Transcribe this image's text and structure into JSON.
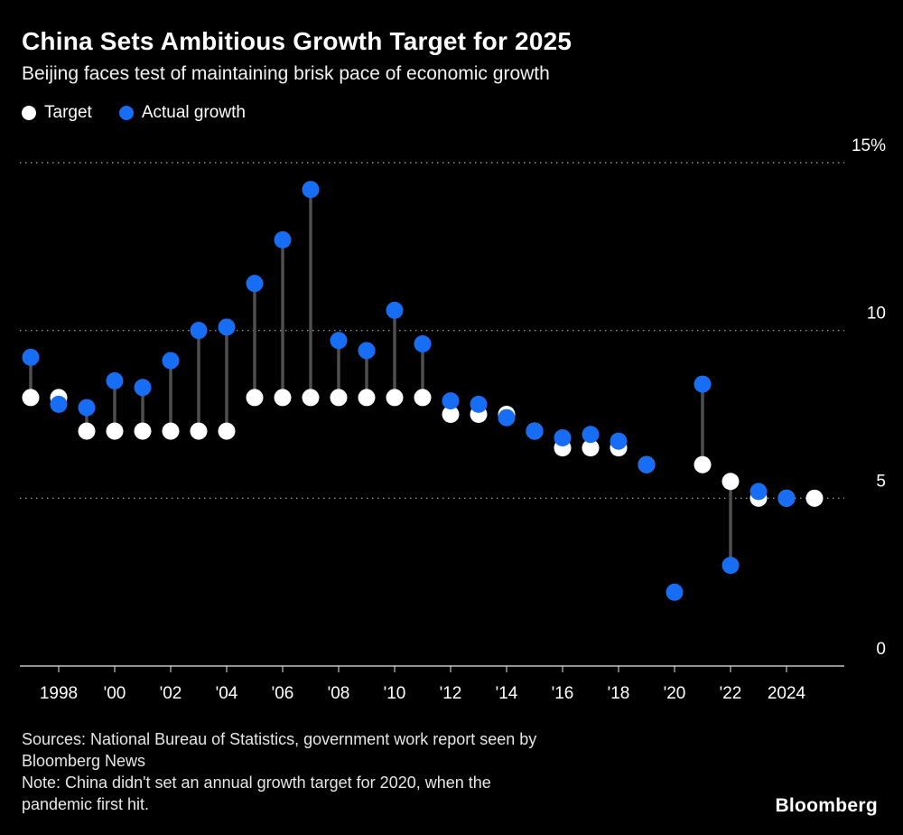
{
  "footer": {
    "source_lines": [
      "Sources: National Bureau of Statistics, government work report seen by",
      "Bloomberg News",
      "Note: China didn't set an annual growth target for 2020, when the",
      "pandemic first hit."
    ],
    "logo": "Bloomberg"
  },
  "colors": {
    "background": "#000000",
    "target": "#ffffff",
    "actual": "#186df5",
    "connector": "#4f4f4f",
    "gridline": "#8f8f8f",
    "axis": "#e8e8e8"
  },
  "chart_data": {
    "type": "scatter",
    "title": "China Sets Ambitious Growth Target for 2025",
    "subtitle": "Beijing faces test of maintaining brisk pace of economic growth",
    "xlabel": "",
    "ylabel": "",
    "ylim": [
      0,
      15
    ],
    "grid": true,
    "legend_position": "top-left",
    "yticks": [
      {
        "value": 0,
        "label": "0"
      },
      {
        "value": 5,
        "label": "5"
      },
      {
        "value": 10,
        "label": "10"
      },
      {
        "value": 15,
        "label": "15%"
      }
    ],
    "xticks": [
      {
        "value": 1998,
        "label": "1998"
      },
      {
        "value": 2000,
        "label": "'00"
      },
      {
        "value": 2002,
        "label": "'02"
      },
      {
        "value": 2004,
        "label": "'04"
      },
      {
        "value": 2006,
        "label": "'06"
      },
      {
        "value": 2008,
        "label": "'08"
      },
      {
        "value": 2010,
        "label": "'10"
      },
      {
        "value": 2012,
        "label": "'12"
      },
      {
        "value": 2014,
        "label": "'14"
      },
      {
        "value": 2016,
        "label": "'16"
      },
      {
        "value": 2018,
        "label": "'18"
      },
      {
        "value": 2020,
        "label": "'20"
      },
      {
        "value": 2022,
        "label": "'22"
      },
      {
        "value": 2024,
        "label": "2024"
      }
    ],
    "years": [
      1997,
      1998,
      1999,
      2000,
      2001,
      2002,
      2003,
      2004,
      2005,
      2006,
      2007,
      2008,
      2009,
      2010,
      2011,
      2012,
      2013,
      2014,
      2015,
      2016,
      2017,
      2018,
      2019,
      2020,
      2021,
      2022,
      2023,
      2024,
      2025
    ],
    "series": [
      {
        "name": "Target",
        "color": "#ffffff",
        "values": [
          8,
          8,
          7,
          7,
          7,
          7,
          7,
          7,
          8,
          8,
          8,
          8,
          8,
          8,
          8,
          7.5,
          7.5,
          7.5,
          7,
          6.5,
          6.5,
          6.5,
          6,
          null,
          6,
          5.5,
          5,
          5,
          5
        ]
      },
      {
        "name": "Actual growth",
        "color": "#186df5",
        "values": [
          9.2,
          7.8,
          7.7,
          8.5,
          8.3,
          9.1,
          10,
          10.1,
          11.4,
          12.7,
          14.2,
          9.7,
          9.4,
          10.6,
          9.6,
          7.9,
          7.8,
          7.4,
          7,
          6.8,
          6.9,
          6.7,
          6,
          2.2,
          8.4,
          3,
          5.2,
          5,
          null
        ]
      }
    ]
  }
}
